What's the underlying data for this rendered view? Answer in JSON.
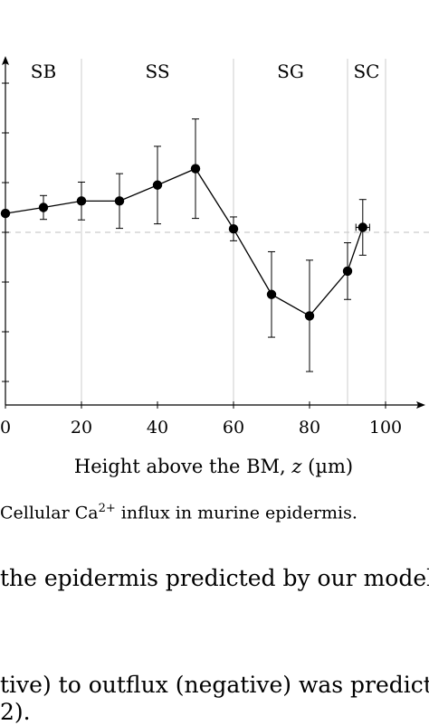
{
  "chart_data": {
    "type": "line",
    "xlabel_prefix": "Height above the BM, ",
    "xlabel_var": "z",
    "xlabel_unit": " (µm)",
    "xlim": [
      0,
      107
    ],
    "ylim": [
      -3.9,
      3.5
    ],
    "x_ticks": [
      0,
      20,
      40,
      60,
      80,
      100
    ],
    "y_ticks": [
      -3,
      -2,
      -1,
      0,
      1,
      2,
      3
    ],
    "reference_y": 0,
    "region_boundaries": [
      20,
      60,
      90,
      100
    ],
    "regions": [
      {
        "label": "SB",
        "x": 10
      },
      {
        "label": "SS",
        "x": 40
      },
      {
        "label": "SG",
        "x": 75
      },
      {
        "label": "SC",
        "x": 95
      }
    ],
    "points": [
      {
        "x": 0,
        "y": 0.38,
        "err": 0
      },
      {
        "x": 10,
        "y": 0.5,
        "err": 0.24
      },
      {
        "x": 20,
        "y": 0.63,
        "err": 0.38
      },
      {
        "x": 30,
        "y": 0.63,
        "err": 0.55
      },
      {
        "x": 40,
        "y": 0.95,
        "err": 0.78
      },
      {
        "x": 50,
        "y": 1.28,
        "err": 1.0
      },
      {
        "x": 60,
        "y": 0.07,
        "err": 0.24
      },
      {
        "x": 70,
        "y": -1.25,
        "err": 0.86
      },
      {
        "x": 80,
        "y": -1.68,
        "err": 1.12
      },
      {
        "x": 90,
        "y": -0.78,
        "err": 0.57
      },
      {
        "x": 94,
        "y": 0.1,
        "err": 0.56,
        "xerr": 1.8
      }
    ]
  },
  "caption": {
    "prefix": "Cellular Ca",
    "superscript": "2+",
    "suffix": " influx in murine epidermis."
  },
  "body_text": {
    "line1": "the epidermis predicted by our model.",
    "line2": "tive) to outflux (negative) was predicte",
    "line3": "2)."
  }
}
